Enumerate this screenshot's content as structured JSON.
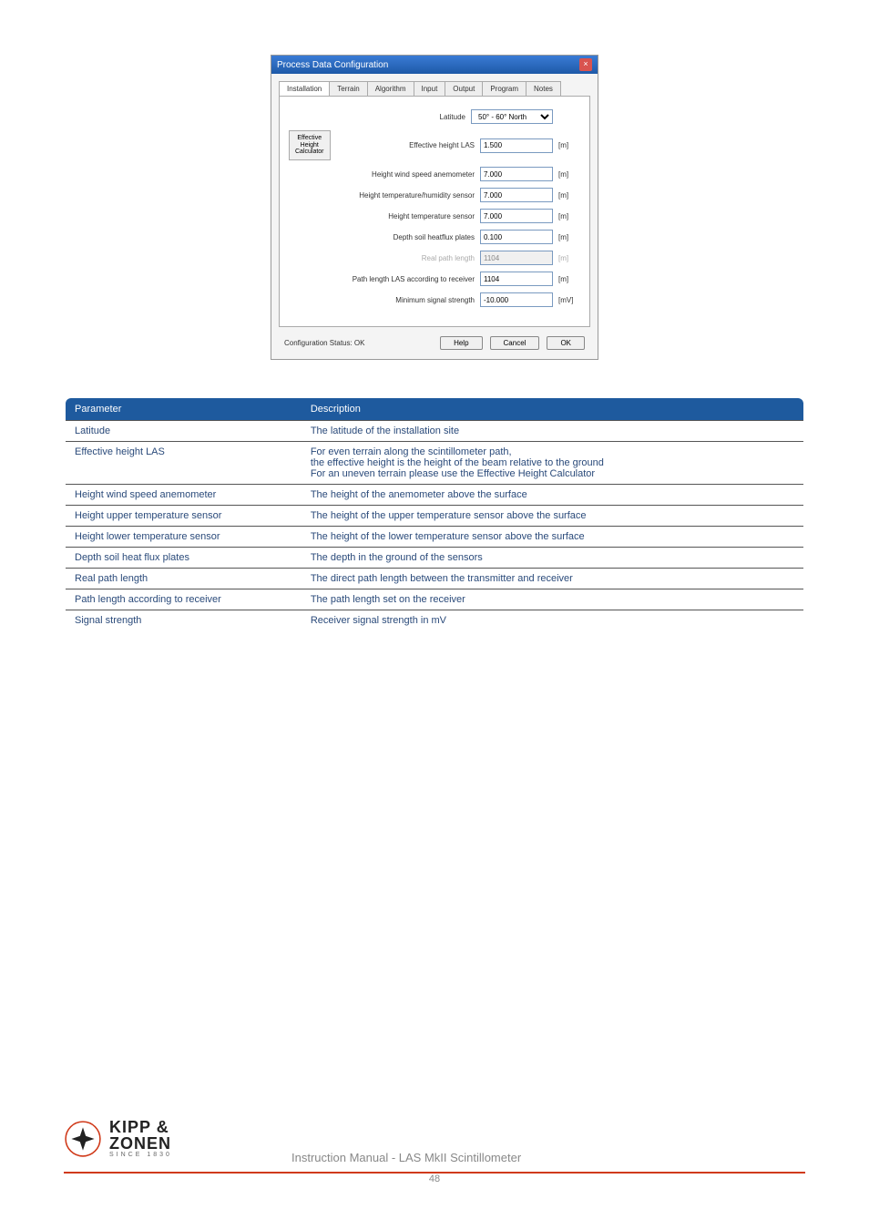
{
  "dialog": {
    "title": "Process Data Configuration",
    "tabs": [
      "Installation",
      "Terrain",
      "Algorithm",
      "Input",
      "Output",
      "Program",
      "Notes"
    ],
    "active_tab": 0,
    "ehc_button": "Effective\nHeight\nCalculator",
    "fields": {
      "latitude": {
        "label": "Latitude",
        "value": "50° - 60° North",
        "unit": ""
      },
      "eff_height": {
        "label": "Effective height LAS",
        "value": "1.500",
        "unit": "[m]"
      },
      "wind_speed": {
        "label": "Height wind speed anemometer",
        "value": "7.000",
        "unit": "[m]"
      },
      "temp_hum": {
        "label": "Height temperature/humidity sensor",
        "value": "7.000",
        "unit": "[m]"
      },
      "temp": {
        "label": "Height temperature sensor",
        "value": "7.000",
        "unit": "[m]"
      },
      "soil": {
        "label": "Depth soil heatflux plates",
        "value": "0.100",
        "unit": "[m]"
      },
      "real_path": {
        "label": "Real path length",
        "value": "1104",
        "unit": "[m]",
        "readonly": true
      },
      "path_recv": {
        "label": "Path length LAS according to receiver",
        "value": "1104",
        "unit": "[m]"
      },
      "min_sig": {
        "label": "Minimum signal strength",
        "value": "-10.000",
        "unit": "[mV]"
      }
    },
    "status": "Configuration Status: OK",
    "buttons": {
      "help": "Help",
      "cancel": "Cancel",
      "ok": "OK"
    }
  },
  "param_table": {
    "header": [
      "Parameter",
      "Description"
    ],
    "rows": [
      [
        "Latitude",
        "The latitude of the installation site"
      ],
      [
        "Effective height LAS",
        "For even terrain along the scintillometer path,\nthe effective height is the height of the beam relative to the ground\nFor an uneven terrain please use the Effective Height Calculator"
      ],
      [
        "Height wind speed anemometer",
        "The height of the anemometer above the surface"
      ],
      [
        "Height upper temperature sensor",
        "The height of the upper temperature sensor above the surface"
      ],
      [
        "Height lower temperature sensor",
        "The height of the lower temperature sensor above the surface"
      ],
      [
        "Depth soil heat flux plates",
        "The depth in the ground of the sensors"
      ],
      [
        "Real path length",
        "The direct path length between the transmitter and receiver"
      ],
      [
        "Path length according to receiver",
        "The path length set on the receiver"
      ],
      [
        "Signal strength",
        "Receiver signal strength in mV"
      ]
    ]
  },
  "footer": {
    "logo_main": "KIPP &\nZONEN",
    "logo_sub": "SINCE 1830",
    "manual": "Instruction Manual - LAS MkII Scintillometer",
    "page": "48"
  },
  "colors": {
    "brand_blue": "#1e5a9e",
    "orange": "#d03a1a"
  }
}
